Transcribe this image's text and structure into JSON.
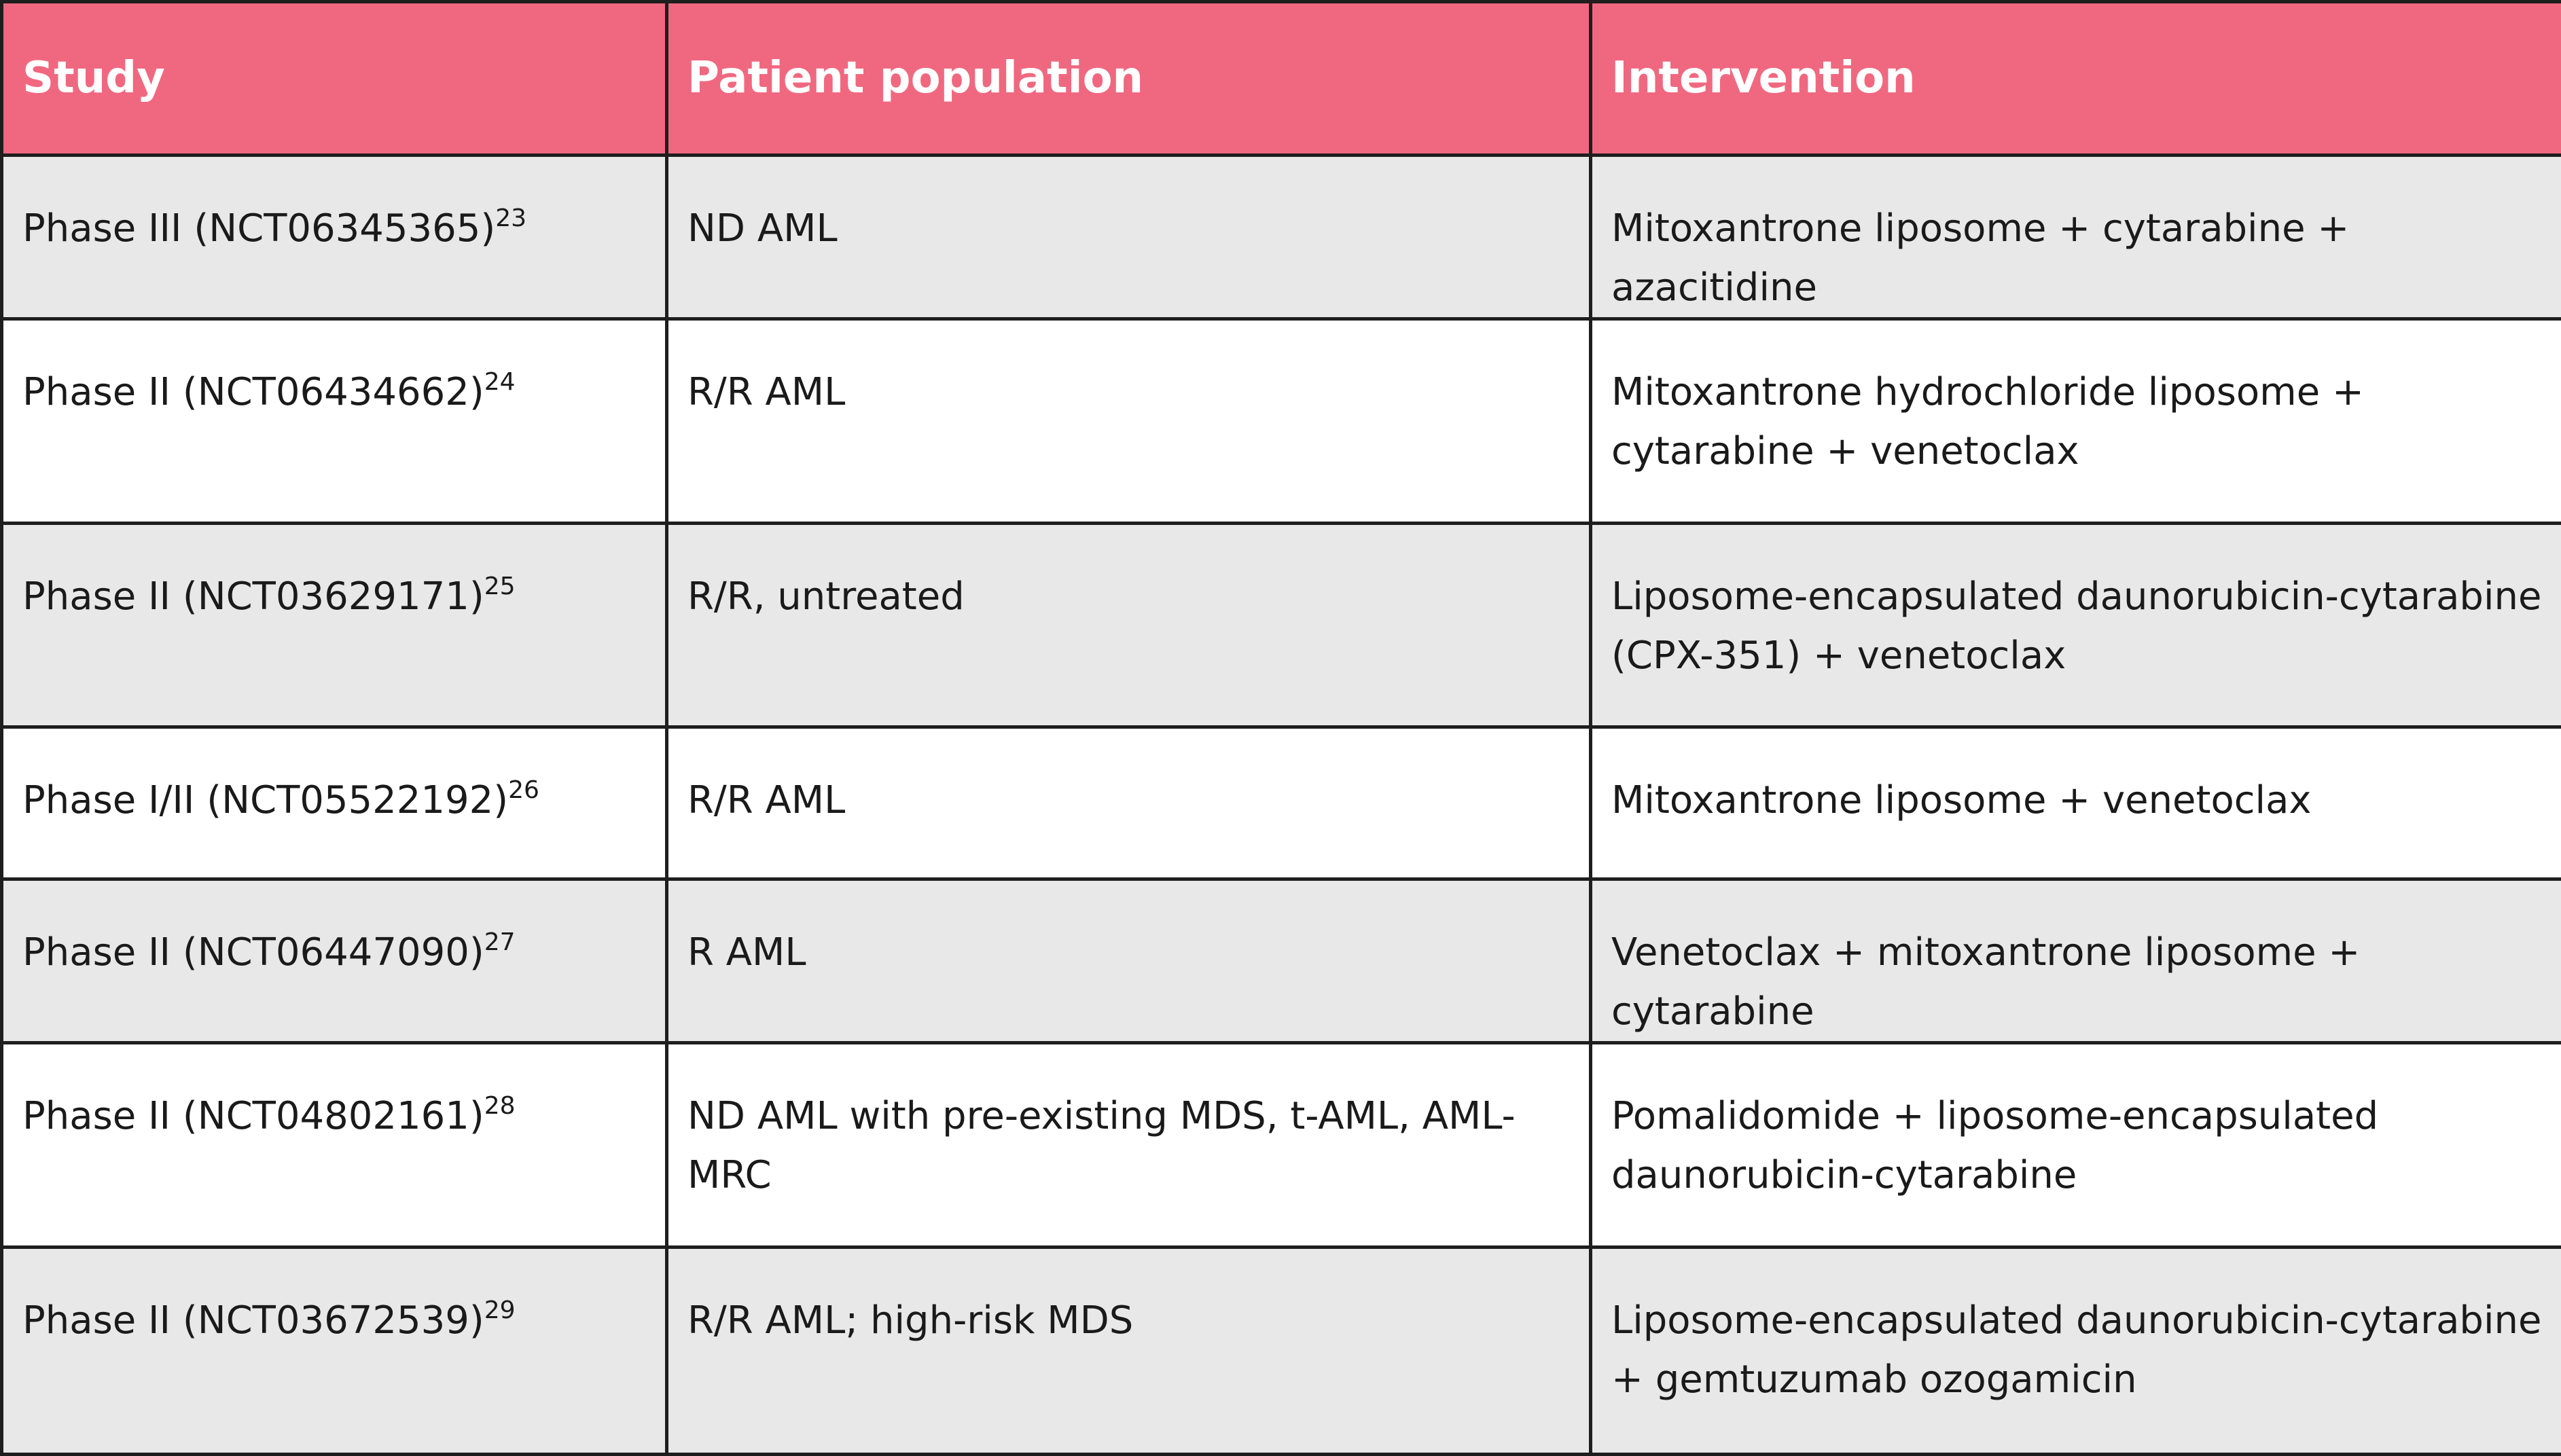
{
  "table": {
    "header": [
      "Study",
      "Patient population",
      "Intervention"
    ],
    "rows": [
      [
        {
          "study": "Phase III (NCT06345365)",
          "ref": "23"
        },
        "ND AML",
        "Mitoxantrone liposome + cytarabine + azacitidine"
      ],
      [
        {
          "study": "Phase II (NCT06434662)",
          "ref": "24"
        },
        "R/R AML",
        "Mitoxantrone hydrochloride liposome + cytarabine + venetoclax"
      ],
      [
        {
          "study": "Phase II (NCT03629171)",
          "ref": "25"
        },
        "R/R, untreated",
        "Liposome-encapsulated daunorubicin-cytarabine (CPX-351) + venetoclax"
      ],
      [
        {
          "study": "Phase I/II (NCT05522192)",
          "ref": "26"
        },
        "R/R AML",
        "Mitoxantrone liposome + venetoclax"
      ],
      [
        {
          "study": "Phase II (NCT06447090)",
          "ref": "27"
        },
        "R AML",
        "Venetoclax + mitoxantrone liposome + cytarabine"
      ],
      [
        {
          "study": "Phase II (NCT04802161)",
          "ref": "28"
        },
        "ND AML with pre-existing MDS, t-AML, AML-MRC",
        "Pomalidomide + liposome-encapsulated daunorubicin-cytarabine"
      ],
      [
        {
          "study": "Phase II (NCT03672539)",
          "ref": "29"
        },
        "R/R AML; high-risk MDS",
        "Liposome-encapsulated daunorubicin-cytarabine + gemtuzumab ozogamicin"
      ]
    ]
  }
}
